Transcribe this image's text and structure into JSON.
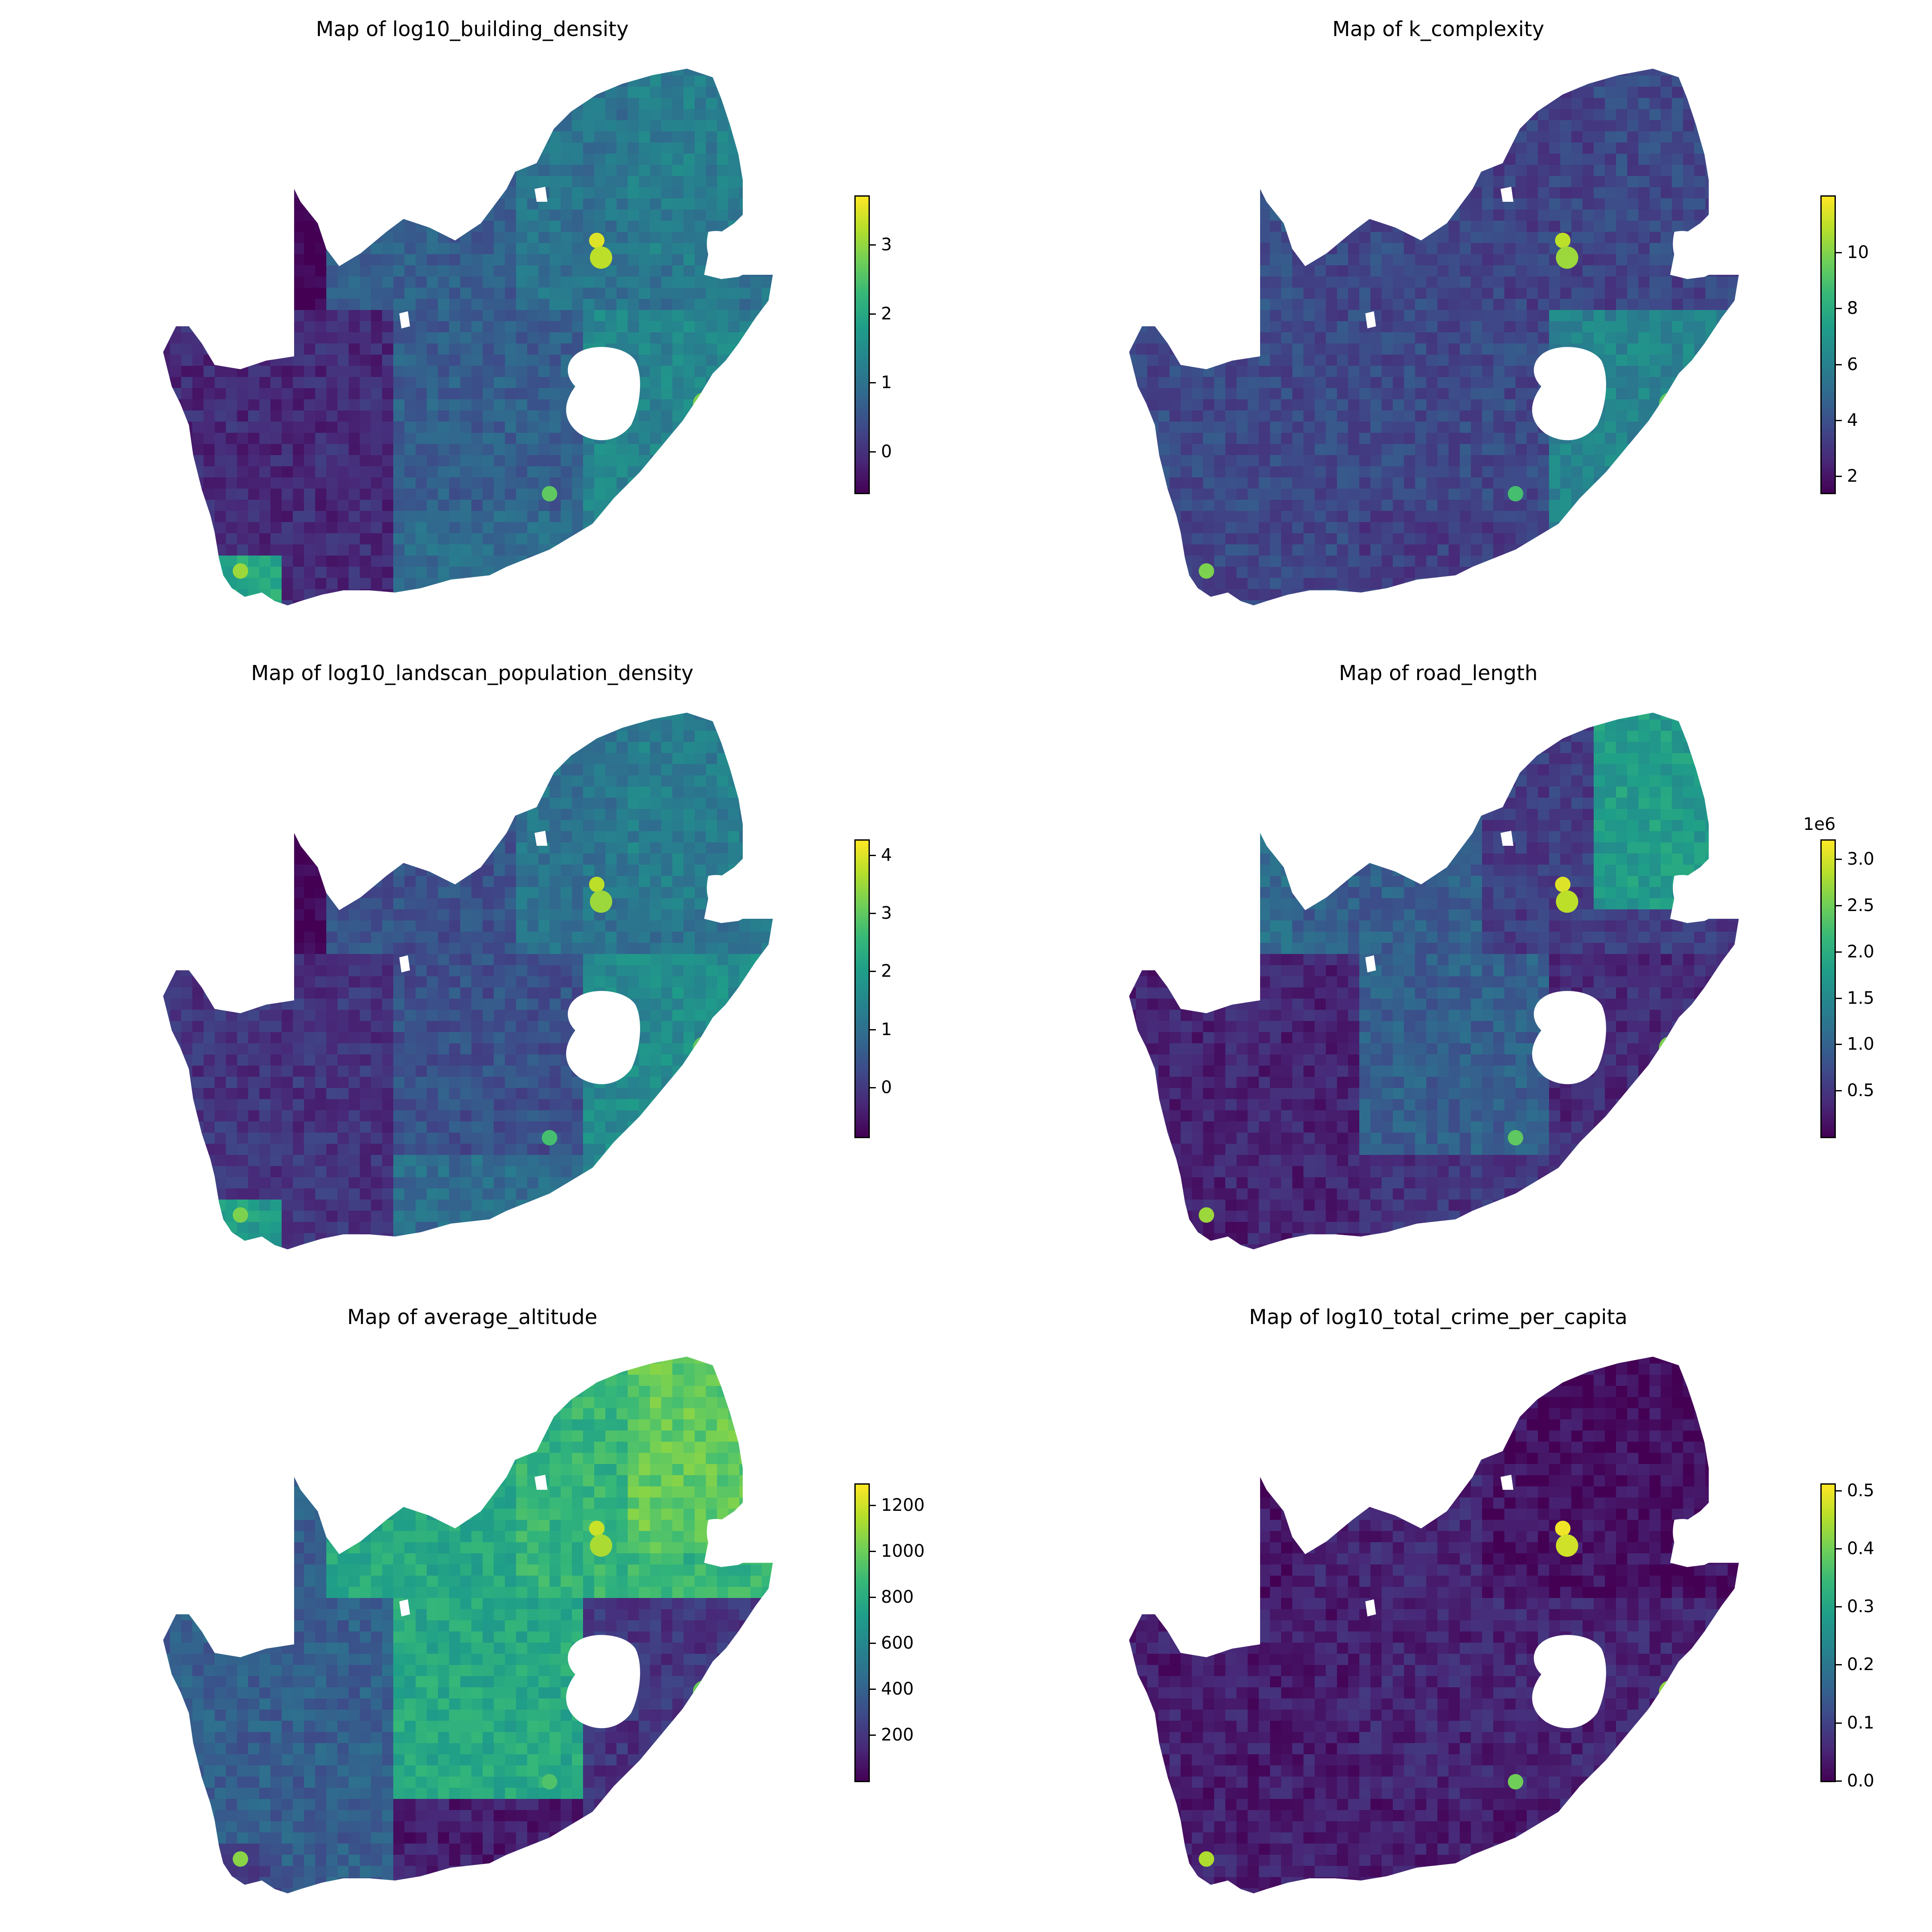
{
  "colors": {
    "viridis": [
      "#440154",
      "#482878",
      "#3e4989",
      "#31688e",
      "#26828e",
      "#1f9e89",
      "#35b779",
      "#6ece58",
      "#b5de2b",
      "#fde725"
    ],
    "hole": "#ffffff"
  },
  "panels": [
    {
      "title": "Map of log10_building_density",
      "colorbar": {
        "min": -0.6,
        "max": 3.7,
        "ticks": [
          "0",
          "1",
          "2",
          "3"
        ],
        "tick_values": [
          0,
          1,
          2,
          3
        ],
        "multiplier": ""
      },
      "regions": {
        "west": 0.12,
        "northwest": 0.0,
        "north": 0.38,
        "northeast": 0.42,
        "central": 0.3,
        "east": 0.45,
        "south": 0.35,
        "cape": 0.6,
        "hotspots": 0.95
      }
    },
    {
      "title": "Map of k_complexity",
      "colorbar": {
        "min": 1.4,
        "max": 12.0,
        "ticks": [
          "2",
          "4",
          "6",
          "8",
          "10"
        ],
        "tick_values": [
          2,
          4,
          6,
          8,
          10
        ],
        "multiplier": ""
      },
      "regions": {
        "west": 0.22,
        "northwest": 0.25,
        "north": 0.2,
        "northeast": 0.22,
        "central": 0.22,
        "east": 0.45,
        "south": 0.18,
        "cape": 0.2,
        "hotspots": 0.9
      }
    },
    {
      "title": "Map of log10_landscan_population_density",
      "colorbar": {
        "min": -0.85,
        "max": 4.25,
        "ticks": [
          "0",
          "1",
          "2",
          "3",
          "4"
        ],
        "tick_values": [
          0,
          1,
          2,
          3,
          4
        ],
        "multiplier": ""
      },
      "regions": {
        "west": 0.15,
        "northwest": 0.0,
        "north": 0.38,
        "northeast": 0.42,
        "central": 0.25,
        "east": 0.48,
        "south": 0.35,
        "cape": 0.55,
        "hotspots": 0.9
      }
    },
    {
      "title": "Map of road_length",
      "colorbar": {
        "min": 0.0,
        "max": 3.2,
        "ticks": [
          "0.5",
          "1.0",
          "1.5",
          "2.0",
          "2.5",
          "3.0"
        ],
        "tick_values": [
          0.5,
          1.0,
          1.5,
          2.0,
          2.5,
          3.0
        ],
        "multiplier": "1e6"
      },
      "regions": {
        "west": 0.1,
        "northwest": 0.35,
        "north": 0.18,
        "northeast": 0.55,
        "central": 0.3,
        "east": 0.12,
        "south": 0.15,
        "cape": 0.08,
        "hotspots": 0.95
      }
    },
    {
      "title": "Map of average_altitude",
      "colorbar": {
        "min": 0,
        "max": 1290,
        "ticks": [
          "200",
          "400",
          "600",
          "800",
          "1000",
          "1200"
        ],
        "tick_values": [
          200,
          400,
          600,
          800,
          1000,
          1200
        ],
        "multiplier": ""
      },
      "regions": {
        "west": 0.3,
        "northwest": 0.3,
        "north": 0.65,
        "northeast": 0.75,
        "central": 0.6,
        "east": 0.15,
        "south": 0.08,
        "cape": 0.2,
        "hotspots": 0.92
      }
    },
    {
      "title": "Map of log10_total_crime_per_capita",
      "colorbar": {
        "min": 0.0,
        "max": 0.51,
        "ticks": [
          "0.0",
          "0.1",
          "0.2",
          "0.3",
          "0.4",
          "0.5"
        ],
        "tick_values": [
          0.0,
          0.1,
          0.2,
          0.3,
          0.4,
          0.5
        ],
        "multiplier": ""
      },
      "regions": {
        "west": 0.08,
        "northwest": 0.05,
        "north": 0.04,
        "northeast": 0.03,
        "central": 0.1,
        "east": 0.1,
        "south": 0.08,
        "cape": 0.1,
        "hotspots": 0.98
      }
    }
  ]
}
